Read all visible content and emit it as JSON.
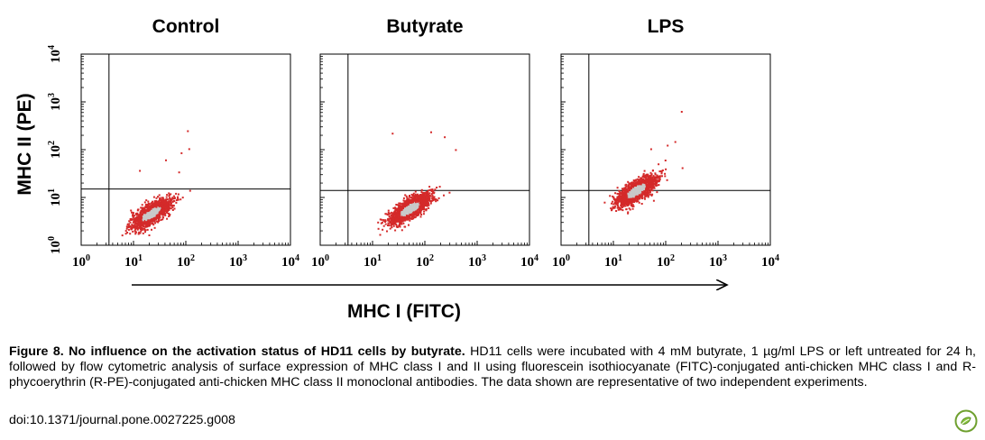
{
  "panels": [
    {
      "title": "Control",
      "gate": {
        "x": 3.4,
        "y": 15
      },
      "cluster": [
        {
          "x": 15,
          "y": 3.2
        },
        {
          "x": 30,
          "y": 7
        }
      ]
    },
    {
      "title": "Butyrate",
      "gate": {
        "x": 3.4,
        "y": 14
      },
      "cluster": [
        {
          "x": 35,
          "y": 3.5
        },
        {
          "x": 70,
          "y": 10
        }
      ]
    },
    {
      "title": "LPS",
      "gate": {
        "x": 3.4,
        "y": 14
      },
      "cluster": [
        {
          "x": 20,
          "y": 10
        },
        {
          "x": 35,
          "y": 20
        }
      ]
    }
  ],
  "chart_data": [
    {
      "type": "scatter",
      "title": "Control",
      "xlabel": "MHC I (FITC)",
      "ylabel": "MHC II (PE)",
      "xscale": "log",
      "yscale": "log",
      "xlim": [
        1,
        10000
      ],
      "ylim": [
        1,
        10000
      ]
    },
    {
      "type": "scatter",
      "title": "Butyrate",
      "xlabel": "MHC I (FITC)",
      "ylabel": "MHC II (PE)",
      "xscale": "log",
      "yscale": "log",
      "xlim": [
        1,
        10000
      ],
      "ylim": [
        1,
        10000
      ]
    },
    {
      "type": "scatter",
      "title": "LPS",
      "xlabel": "MHC I (FITC)",
      "ylabel": "MHC II (PE)",
      "xscale": "log",
      "yscale": "log",
      "xlim": [
        1,
        10000
      ],
      "ylim": [
        1,
        10000
      ]
    }
  ],
  "axes": {
    "x_label": "MHC I (FITC)",
    "y_label": "MHC II (PE)",
    "tick_base": "10",
    "tick_exponents": [
      "0",
      "1",
      "2",
      "3",
      "4"
    ]
  },
  "colors": {
    "dots": "#d42a2a",
    "dense": "#c9c9c9"
  },
  "caption": {
    "bold": "Figure 8. No influence on the activation status of HD11 cells by butyrate.",
    "text": " HD11 cells were incubated with 4 mM butyrate, 1 µg/ml LPS or left untreated for 24 h, followed by flow cytometric analysis of surface expression of MHC class I and II using fluorescein isothiocyanate (FITC)-conjugated anti-chicken MHC class I and R-phycoerythrin (R-PE)-conjugated anti-chicken MHC class II monoclonal antibodies. The data shown are representative of two independent experiments.",
    "doi": "doi:10.1371/journal.pone.0027225.g008"
  },
  "logo_icon": "plos-logo-icon"
}
